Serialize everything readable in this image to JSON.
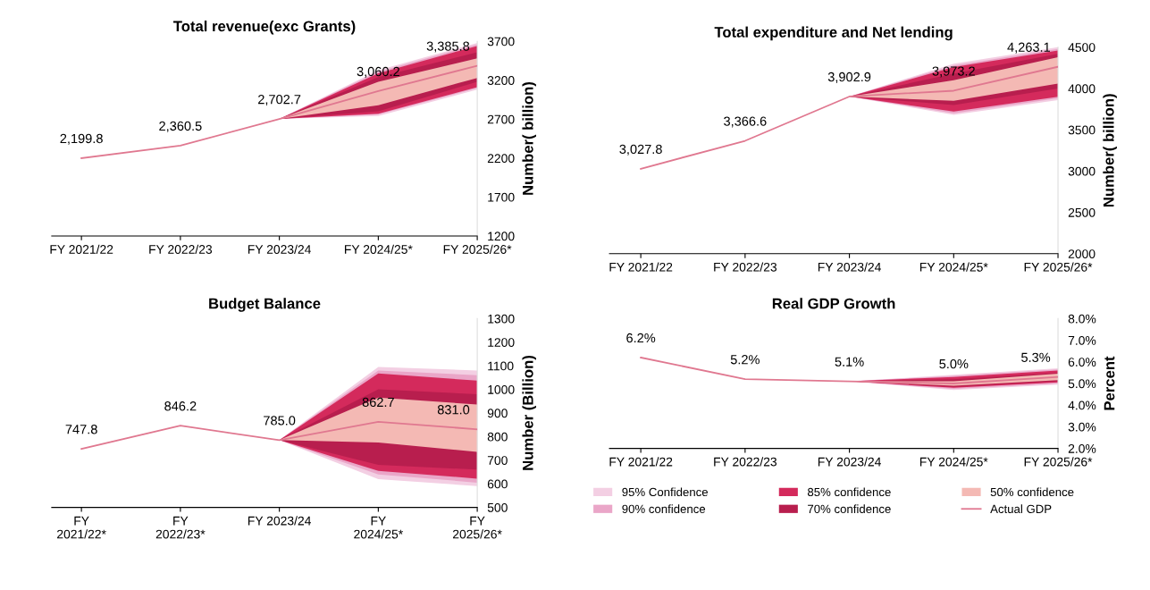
{
  "chart_data": [
    {
      "type": "line",
      "title": "Total revenue(exc Grants)",
      "ylabel": "Number( billion)",
      "categories": [
        "FY 2021/22",
        "FY 2022/23",
        "FY 2023/24",
        "FY 2024/25*",
        "FY 2025/26*"
      ],
      "ylim": [
        1200,
        3700
      ],
      "yticks": [
        1200,
        1700,
        2200,
        2700,
        3200,
        3700
      ],
      "grid": false,
      "legend": false,
      "series": [
        {
          "type": "line",
          "color": "#f3cfe3",
          "values": [
            null,
            null,
            null,
            null,
            null
          ],
          "lower": [
            null,
            null,
            2702.7,
            2740,
            3080
          ],
          "upper": [
            null,
            null,
            2702.7,
            3330,
            3680
          ]
        },
        {
          "type": "line",
          "color": "#eaa6c8",
          "values": [
            null,
            null,
            null,
            null,
            null
          ],
          "lower": [
            null,
            null,
            2702.7,
            2760,
            3100
          ],
          "upper": [
            null,
            null,
            2702.7,
            3310,
            3660
          ]
        },
        {
          "type": "line",
          "color": "#d42a5c",
          "values": [
            null,
            null,
            null,
            null,
            null
          ],
          "lower": [
            null,
            null,
            2702.7,
            2770,
            3110
          ],
          "upper": [
            null,
            null,
            2702.7,
            3290,
            3640
          ]
        },
        {
          "type": "line",
          "color": "#b81e4e",
          "values": [
            null,
            null,
            null,
            null,
            null
          ],
          "lower": [
            null,
            null,
            2702.7,
            2800,
            3180
          ],
          "upper": [
            null,
            null,
            2702.7,
            3240,
            3560
          ]
        },
        {
          "type": "line",
          "color": "#f4b9b4",
          "values": [
            null,
            null,
            null,
            null,
            null
          ],
          "lower": [
            null,
            null,
            2702.7,
            2880,
            3230
          ],
          "upper": [
            null,
            null,
            2702.7,
            3180,
            3480
          ]
        },
        {
          "type": "line",
          "color": "#e07890",
          "values": [
            2199.8,
            2360.5,
            2702.7,
            3060.2,
            3385.8
          ],
          "value_labels": [
            "2,199.8",
            "2,360.5",
            "2,702.7",
            "3,060.2",
            "3,385.8"
          ]
        }
      ]
    },
    {
      "type": "line",
      "title": "Total expenditure and Net lending",
      "ylabel": "Number( billion)",
      "categories": [
        "FY 2021/22",
        "FY 2022/23",
        "FY 2023/24",
        "FY 2024/25*",
        "FY 2025/26*"
      ],
      "ylim": [
        2000,
        4500
      ],
      "yticks": [
        2000,
        2500,
        3000,
        3500,
        4000,
        4500
      ],
      "grid": false,
      "legend": false,
      "series": [
        {
          "type": "line",
          "color": "#f3cfe3",
          "values": [
            null,
            null,
            null,
            null,
            null
          ],
          "lower": [
            null,
            null,
            3902.9,
            3680,
            3860
          ],
          "upper": [
            null,
            null,
            3902.9,
            4300,
            4500
          ]
        },
        {
          "type": "line",
          "color": "#eaa6c8",
          "values": [
            null,
            null,
            null,
            null,
            null
          ],
          "lower": [
            null,
            null,
            3902.9,
            3700,
            3880
          ],
          "upper": [
            null,
            null,
            3902.9,
            4280,
            4480
          ]
        },
        {
          "type": "line",
          "color": "#d42a5c",
          "values": [
            null,
            null,
            null,
            null,
            null
          ],
          "lower": [
            null,
            null,
            3902.9,
            3720,
            3900
          ],
          "upper": [
            null,
            null,
            3902.9,
            4260,
            4460
          ]
        },
        {
          "type": "line",
          "color": "#b81e4e",
          "values": [
            null,
            null,
            null,
            null,
            null
          ],
          "lower": [
            null,
            null,
            3902.9,
            3800,
            4000
          ],
          "upper": [
            null,
            null,
            3902.9,
            4180,
            4420
          ]
        },
        {
          "type": "line",
          "color": "#f4b9b4",
          "values": [
            null,
            null,
            null,
            null,
            null
          ],
          "lower": [
            null,
            null,
            3902.9,
            3850,
            4060
          ],
          "upper": [
            null,
            null,
            3902.9,
            4100,
            4380
          ]
        },
        {
          "type": "line",
          "color": "#e07890",
          "values": [
            3027.8,
            3366.6,
            3902.9,
            3973.2,
            4263.1
          ],
          "value_labels": [
            "3,027.8",
            "3,366.6",
            "3,902.9",
            "3,973.2",
            "4,263.1"
          ]
        }
      ]
    },
    {
      "type": "line",
      "title": "Budget Balance",
      "ylabel": "Number (Billion)",
      "categories": [
        "FY\n2021/22*",
        "FY\n2022/23*",
        "FY 2023/24",
        "FY\n2024/25*",
        "FY\n2025/26*"
      ],
      "ylim": [
        500,
        1300
      ],
      "yticks": [
        500,
        600,
        700,
        800,
        900,
        1000,
        1100,
        1200,
        1300
      ],
      "grid": false,
      "legend": false,
      "series": [
        {
          "type": "line",
          "color": "#f3cfe3",
          "values": [
            null,
            null,
            null,
            null,
            null
          ],
          "lower": [
            null,
            null,
            785.0,
            620,
            590
          ],
          "upper": [
            null,
            null,
            785.0,
            1095,
            1080
          ]
        },
        {
          "type": "line",
          "color": "#eaa6c8",
          "values": [
            null,
            null,
            null,
            null,
            null
          ],
          "lower": [
            null,
            null,
            785.0,
            640,
            605
          ],
          "upper": [
            null,
            null,
            785.0,
            1080,
            1060
          ]
        },
        {
          "type": "line",
          "color": "#d42a5c",
          "values": [
            null,
            null,
            null,
            null,
            null
          ],
          "lower": [
            null,
            null,
            785.0,
            655,
            622
          ],
          "upper": [
            null,
            null,
            785.0,
            1068,
            1037
          ]
        },
        {
          "type": "line",
          "color": "#b81e4e",
          "values": [
            null,
            null,
            null,
            null,
            null
          ],
          "lower": [
            null,
            null,
            785.0,
            680,
            660
          ],
          "upper": [
            null,
            null,
            785.0,
            1000,
            980
          ]
        },
        {
          "type": "line",
          "color": "#f4b9b4",
          "values": [
            null,
            null,
            null,
            null,
            null
          ],
          "lower": [
            null,
            null,
            785.0,
            775,
            735
          ],
          "upper": [
            null,
            null,
            785.0,
            965,
            936
          ]
        },
        {
          "type": "line",
          "color": "#e07890",
          "values": [
            747.8,
            846.2,
            785.0,
            862.7,
            831.0
          ],
          "value_labels": [
            "747.8",
            "846.2",
            "785.0",
            "862.7",
            "831.0"
          ]
        }
      ]
    },
    {
      "type": "line",
      "title": "Real GDP Growth",
      "ylabel": "Percent",
      "categories": [
        "FY 2021/22",
        "FY 2022/23",
        "FY 2023/24",
        "FY 2024/25*",
        "FY 2025/26*"
      ],
      "ylim": [
        2,
        8
      ],
      "yticks": [
        {
          "value": 2,
          "label": "2.0%"
        },
        {
          "value": 3,
          "label": "3.0%"
        },
        {
          "value": 4,
          "label": "4.0%"
        },
        {
          "value": 5,
          "label": "5.0%"
        },
        {
          "value": 6,
          "label": "6.0%"
        },
        {
          "value": 7,
          "label": "7.0%"
        },
        {
          "value": 8,
          "label": "8.0%"
        }
      ],
      "grid": false,
      "legend": "bottom",
      "series": [
        {
          "type": "line",
          "name": "95% Confidence",
          "color": "#f3cfe3",
          "values": [
            null,
            null,
            null,
            null,
            null
          ],
          "lower": [
            null,
            null,
            5.1,
            4.7,
            4.95
          ],
          "upper": [
            null,
            null,
            5.1,
            5.4,
            5.7
          ]
        },
        {
          "type": "line",
          "name": "90% confidence",
          "color": "#eaa6c8",
          "values": [
            null,
            null,
            null,
            null,
            null
          ],
          "lower": [
            null,
            null,
            5.1,
            4.75,
            5.0
          ],
          "upper": [
            null,
            null,
            5.1,
            5.35,
            5.65
          ]
        },
        {
          "type": "line",
          "name": "85% confidence",
          "color": "#d42a5c",
          "values": [
            null,
            null,
            null,
            null,
            null
          ],
          "lower": [
            null,
            null,
            5.1,
            4.8,
            5.05
          ],
          "upper": [
            null,
            null,
            5.1,
            5.3,
            5.6
          ]
        },
        {
          "type": "line",
          "name": "70% confidence",
          "color": "#b81e4e",
          "values": [
            null,
            null,
            null,
            null,
            null
          ],
          "lower": [
            null,
            null,
            5.1,
            4.85,
            5.1
          ],
          "upper": [
            null,
            null,
            5.1,
            5.2,
            5.5
          ]
        },
        {
          "type": "line",
          "name": "50% confidence",
          "color": "#f4b9b4",
          "values": [
            null,
            null,
            null,
            null,
            null
          ],
          "lower": [
            null,
            null,
            5.1,
            4.9,
            5.15
          ],
          "upper": [
            null,
            null,
            5.1,
            5.1,
            5.45
          ]
        },
        {
          "type": "line",
          "name": "Actual GDP",
          "color": "#e07890",
          "values": [
            6.2,
            5.2,
            5.1,
            5.0,
            5.3
          ],
          "value_labels": [
            "6.2%",
            "5.2%",
            "5.1%",
            "5.0%",
            "5.3%"
          ]
        }
      ]
    }
  ]
}
